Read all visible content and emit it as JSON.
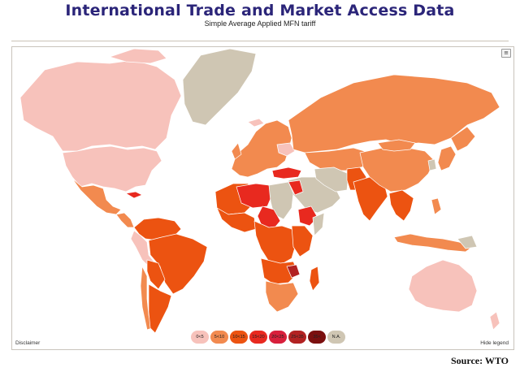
{
  "header": {
    "title": "International Trade and Market Access Data",
    "subtitle": "Simple Average Applied MFN tariff"
  },
  "map": {
    "menu_icon": "≡",
    "disclaimer": "Disclaimer",
    "hide_legend": "Hide legend",
    "legend": [
      {
        "label": "0<5",
        "color": "#f7c2bb"
      },
      {
        "label": "5<10",
        "color": "#f28a4f"
      },
      {
        "label": "10<15",
        "color": "#ec5311"
      },
      {
        "label": "15<20",
        "color": "#e8291f"
      },
      {
        "label": "20<25",
        "color": "#d81f3b"
      },
      {
        "label": "25<35",
        "color": "#b22222"
      },
      {
        "label": "35<",
        "color": "#7b0f0f"
      },
      {
        "label": "N.A.",
        "color": "#cfc6b3"
      }
    ],
    "ocean_color": "#ffffff",
    "border_color": "#ffffff"
  },
  "footer": {
    "source": "Source:  WTO"
  }
}
